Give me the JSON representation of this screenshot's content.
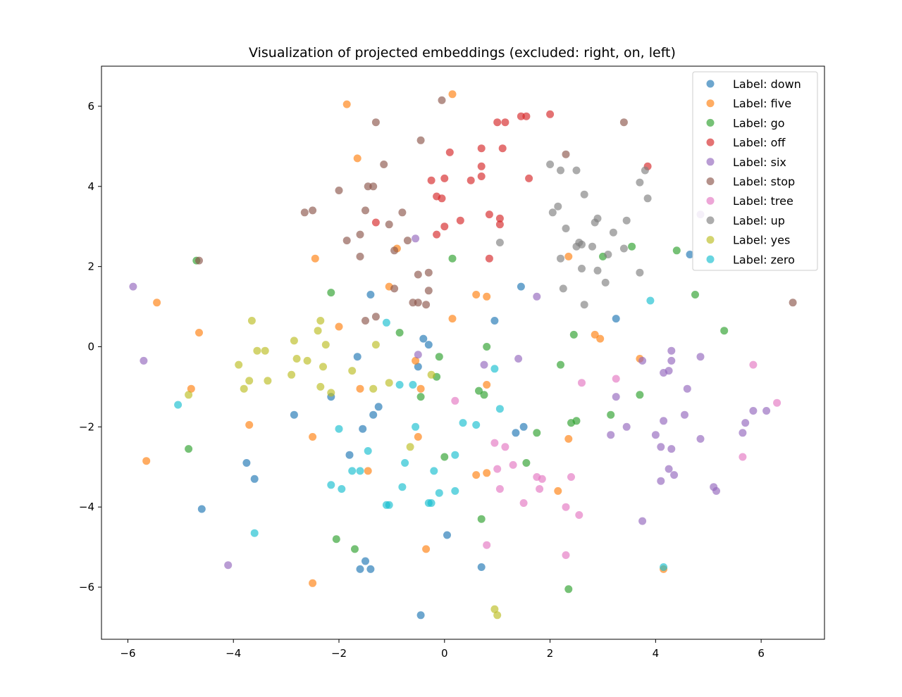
{
  "chart_data": {
    "type": "scatter",
    "title": "Visualization of projected embeddings (excluded: right, on, left)",
    "xlabel": "",
    "ylabel": "",
    "xlim": [
      -6.5,
      7.2
    ],
    "ylim": [
      -7.3,
      7.0
    ],
    "xticks": [
      -6,
      -4,
      -2,
      0,
      2,
      4,
      6
    ],
    "yticks": [
      -6,
      -4,
      -2,
      0,
      2,
      4,
      6
    ],
    "xtick_labels": [
      "−6",
      "−4",
      "−2",
      "0",
      "2",
      "4",
      "6"
    ],
    "ytick_labels": [
      "−6",
      "−4",
      "−2",
      "0",
      "2",
      "4",
      "6"
    ],
    "grid": false,
    "legend_position": "top-right",
    "series": [
      {
        "name": "Label: down",
        "color": "#1f77b4",
        "points": [
          [
            -1.4,
            1.3
          ],
          [
            1.45,
            1.5
          ],
          [
            0.95,
            0.65
          ],
          [
            3.25,
            0.7
          ],
          [
            -0.4,
            0.2
          ],
          [
            -0.3,
            0.05
          ],
          [
            -1.65,
            -0.25
          ],
          [
            -0.5,
            -0.5
          ],
          [
            -2.15,
            -1.25
          ],
          [
            -1.25,
            -1.5
          ],
          [
            -1.35,
            -1.7
          ],
          [
            -2.85,
            -1.7
          ],
          [
            -1.55,
            -2.05
          ],
          [
            -1.8,
            -2.7
          ],
          [
            1.5,
            -2.0
          ],
          [
            1.35,
            -2.15
          ],
          [
            -3.75,
            -2.9
          ],
          [
            -3.6,
            -3.3
          ],
          [
            -4.6,
            -4.05
          ],
          [
            0.05,
            -4.7
          ],
          [
            -1.5,
            -5.35
          ],
          [
            -1.6,
            -5.55
          ],
          [
            -1.4,
            -5.55
          ],
          [
            0.7,
            -5.5
          ],
          [
            -0.45,
            -6.7
          ],
          [
            4.65,
            2.3
          ]
        ]
      },
      {
        "name": "Label: five",
        "color": "#ff7f0e",
        "points": [
          [
            0.15,
            6.3
          ],
          [
            -1.85,
            6.05
          ],
          [
            -1.65,
            4.7
          ],
          [
            -2.45,
            2.2
          ],
          [
            -0.9,
            2.45
          ],
          [
            2.35,
            2.25
          ],
          [
            -5.45,
            1.1
          ],
          [
            -1.05,
            1.5
          ],
          [
            0.6,
            1.3
          ],
          [
            0.8,
            1.25
          ],
          [
            -4.65,
            0.35
          ],
          [
            0.15,
            0.7
          ],
          [
            -2.0,
            0.5
          ],
          [
            2.85,
            0.3
          ],
          [
            2.95,
            0.2
          ],
          [
            3.7,
            -0.3
          ],
          [
            -0.55,
            -0.35
          ],
          [
            -0.45,
            -1.05
          ],
          [
            -4.8,
            -1.05
          ],
          [
            -1.6,
            -1.05
          ],
          [
            0.8,
            -0.95
          ],
          [
            -3.7,
            -1.95
          ],
          [
            -0.5,
            -2.25
          ],
          [
            -2.5,
            -2.25
          ],
          [
            2.35,
            -2.3
          ],
          [
            -5.65,
            -2.85
          ],
          [
            -1.45,
            -3.1
          ],
          [
            0.6,
            -3.2
          ],
          [
            0.8,
            -3.15
          ],
          [
            2.15,
            -3.6
          ],
          [
            -0.35,
            -5.05
          ],
          [
            -2.5,
            -5.9
          ],
          [
            4.15,
            -5.55
          ]
        ]
      },
      {
        "name": "Label: go",
        "color": "#2ca02c",
        "points": [
          [
            0.15,
            2.2
          ],
          [
            3.55,
            2.5
          ],
          [
            4.4,
            2.4
          ],
          [
            3.0,
            2.25
          ],
          [
            -4.7,
            2.15
          ],
          [
            -2.15,
            1.35
          ],
          [
            4.75,
            1.3
          ],
          [
            -0.85,
            0.35
          ],
          [
            2.45,
            0.3
          ],
          [
            5.3,
            0.4
          ],
          [
            0.8,
            0.0
          ],
          [
            -0.1,
            -0.25
          ],
          [
            -0.15,
            -0.75
          ],
          [
            2.2,
            -0.45
          ],
          [
            0.65,
            -1.1
          ],
          [
            0.75,
            -1.2
          ],
          [
            3.7,
            -1.2
          ],
          [
            -0.45,
            -1.25
          ],
          [
            3.15,
            -1.7
          ],
          [
            2.5,
            -1.85
          ],
          [
            2.4,
            -1.9
          ],
          [
            1.75,
            -2.15
          ],
          [
            0.0,
            -2.75
          ],
          [
            1.55,
            -2.9
          ],
          [
            -4.85,
            -2.55
          ],
          [
            0.7,
            -4.3
          ],
          [
            -2.05,
            -4.8
          ],
          [
            -1.7,
            -5.05
          ],
          [
            2.35,
            -6.05
          ]
        ]
      },
      {
        "name": "Label: off",
        "color": "#d62728",
        "points": [
          [
            1.45,
            5.75
          ],
          [
            1.55,
            5.75
          ],
          [
            2.0,
            5.8
          ],
          [
            1.0,
            5.6
          ],
          [
            1.15,
            5.6
          ],
          [
            0.1,
            4.85
          ],
          [
            0.7,
            4.95
          ],
          [
            1.1,
            4.95
          ],
          [
            -0.25,
            4.15
          ],
          [
            0.0,
            4.2
          ],
          [
            0.5,
            4.15
          ],
          [
            0.7,
            4.25
          ],
          [
            0.7,
            4.5
          ],
          [
            1.6,
            4.2
          ],
          [
            3.85,
            4.5
          ],
          [
            -0.15,
            3.75
          ],
          [
            -0.05,
            3.7
          ],
          [
            0.85,
            3.3
          ],
          [
            1.05,
            3.2
          ],
          [
            1.05,
            3.05
          ],
          [
            -1.3,
            3.1
          ],
          [
            0.3,
            3.15
          ],
          [
            0.0,
            3.0
          ],
          [
            -0.15,
            2.8
          ],
          [
            0.85,
            2.2
          ]
        ]
      },
      {
        "name": "Label: six",
        "color": "#9467bd",
        "points": [
          [
            -5.9,
            1.5
          ],
          [
            1.75,
            1.25
          ],
          [
            -0.55,
            2.7
          ],
          [
            4.3,
            -0.1
          ],
          [
            4.85,
            -0.25
          ],
          [
            1.4,
            -0.3
          ],
          [
            3.75,
            -0.35
          ],
          [
            4.3,
            -0.35
          ],
          [
            -5.7,
            -0.35
          ],
          [
            0.75,
            -0.45
          ],
          [
            4.25,
            -0.6
          ],
          [
            -0.5,
            -0.2
          ],
          [
            4.15,
            -0.65
          ],
          [
            4.6,
            -1.05
          ],
          [
            3.25,
            -1.25
          ],
          [
            5.85,
            -1.6
          ],
          [
            6.1,
            -1.6
          ],
          [
            4.15,
            -1.85
          ],
          [
            5.7,
            -1.9
          ],
          [
            4.55,
            -1.7
          ],
          [
            3.45,
            -2.0
          ],
          [
            3.15,
            -2.2
          ],
          [
            4.0,
            -2.2
          ],
          [
            4.85,
            -2.3
          ],
          [
            5.65,
            -2.15
          ],
          [
            4.1,
            -2.5
          ],
          [
            4.3,
            -2.55
          ],
          [
            4.25,
            -3.05
          ],
          [
            4.35,
            -3.2
          ],
          [
            4.1,
            -3.35
          ],
          [
            5.1,
            -3.5
          ],
          [
            5.15,
            -3.6
          ],
          [
            3.75,
            -4.35
          ],
          [
            -4.1,
            -5.45
          ],
          [
            4.85,
            3.3
          ]
        ]
      },
      {
        "name": "Label: stop",
        "color": "#8c564b",
        "points": [
          [
            -0.05,
            6.15
          ],
          [
            -1.3,
            5.6
          ],
          [
            3.4,
            5.6
          ],
          [
            -0.45,
            5.15
          ],
          [
            2.3,
            4.8
          ],
          [
            -1.15,
            4.55
          ],
          [
            -2.0,
            3.9
          ],
          [
            -1.45,
            4.0
          ],
          [
            -1.35,
            4.0
          ],
          [
            -2.65,
            3.35
          ],
          [
            -2.5,
            3.4
          ],
          [
            -1.5,
            3.4
          ],
          [
            -0.8,
            3.35
          ],
          [
            -1.05,
            3.05
          ],
          [
            -1.6,
            2.8
          ],
          [
            -1.85,
            2.65
          ],
          [
            -0.7,
            2.65
          ],
          [
            -0.95,
            2.4
          ],
          [
            -1.6,
            2.25
          ],
          [
            -0.5,
            1.8
          ],
          [
            -0.3,
            1.85
          ],
          [
            -0.3,
            1.4
          ],
          [
            -0.95,
            1.45
          ],
          [
            -0.6,
            1.1
          ],
          [
            -0.5,
            1.1
          ],
          [
            -0.35,
            1.05
          ],
          [
            -1.3,
            0.75
          ],
          [
            -1.5,
            0.65
          ],
          [
            -4.65,
            2.15
          ],
          [
            6.6,
            1.1
          ]
        ]
      },
      {
        "name": "Label: tree",
        "color": "#e377c2",
        "points": [
          [
            5.85,
            -0.45
          ],
          [
            3.25,
            -0.8
          ],
          [
            2.6,
            -0.9
          ],
          [
            6.3,
            -1.4
          ],
          [
            0.2,
            -1.35
          ],
          [
            0.95,
            -2.4
          ],
          [
            1.15,
            -2.5
          ],
          [
            1.3,
            -2.95
          ],
          [
            1.0,
            -3.05
          ],
          [
            1.75,
            -3.25
          ],
          [
            1.85,
            -3.3
          ],
          [
            2.4,
            -3.25
          ],
          [
            5.65,
            -2.75
          ],
          [
            1.05,
            -3.55
          ],
          [
            1.8,
            -3.55
          ],
          [
            1.5,
            -3.9
          ],
          [
            2.3,
            -4.0
          ],
          [
            2.55,
            -4.2
          ],
          [
            0.8,
            -4.95
          ],
          [
            2.3,
            -5.2
          ]
        ]
      },
      {
        "name": "Label: up",
        "color": "#7f7f7f",
        "points": [
          [
            2.0,
            4.55
          ],
          [
            2.2,
            4.4
          ],
          [
            2.5,
            4.4
          ],
          [
            3.8,
            4.4
          ],
          [
            3.7,
            4.1
          ],
          [
            2.65,
            3.8
          ],
          [
            3.85,
            3.7
          ],
          [
            2.15,
            3.5
          ],
          [
            2.05,
            3.35
          ],
          [
            2.9,
            3.2
          ],
          [
            3.45,
            3.15
          ],
          [
            2.85,
            3.1
          ],
          [
            2.3,
            2.95
          ],
          [
            3.2,
            2.85
          ],
          [
            1.05,
            2.6
          ],
          [
            2.55,
            2.6
          ],
          [
            2.6,
            2.55
          ],
          [
            2.5,
            2.5
          ],
          [
            2.8,
            2.5
          ],
          [
            3.4,
            2.45
          ],
          [
            3.1,
            2.3
          ],
          [
            2.2,
            2.2
          ],
          [
            2.6,
            1.95
          ],
          [
            2.9,
            1.9
          ],
          [
            3.7,
            1.85
          ],
          [
            3.05,
            1.6
          ],
          [
            2.25,
            1.45
          ],
          [
            2.65,
            1.05
          ]
        ]
      },
      {
        "name": "Label: yes",
        "color": "#bcbd22",
        "points": [
          [
            -3.65,
            0.65
          ],
          [
            -2.35,
            0.65
          ],
          [
            -2.4,
            0.4
          ],
          [
            -2.85,
            0.15
          ],
          [
            -2.25,
            0.05
          ],
          [
            -1.3,
            0.05
          ],
          [
            -3.55,
            -0.1
          ],
          [
            -3.4,
            -0.1
          ],
          [
            -2.8,
            -0.3
          ],
          [
            -2.6,
            -0.35
          ],
          [
            -3.9,
            -0.45
          ],
          [
            -2.3,
            -0.5
          ],
          [
            -1.75,
            -0.6
          ],
          [
            -2.9,
            -0.7
          ],
          [
            -0.25,
            -0.7
          ],
          [
            -3.7,
            -0.85
          ],
          [
            -3.35,
            -0.85
          ],
          [
            -1.05,
            -0.9
          ],
          [
            -2.35,
            -1.0
          ],
          [
            -3.8,
            -1.05
          ],
          [
            -1.35,
            -1.05
          ],
          [
            -2.15,
            -1.15
          ],
          [
            -4.85,
            -1.2
          ],
          [
            -0.65,
            -2.5
          ],
          [
            0.95,
            -6.55
          ],
          [
            1.0,
            -6.7
          ]
        ]
      },
      {
        "name": "Label: zero",
        "color": "#17becf",
        "points": [
          [
            3.9,
            1.15
          ],
          [
            -1.1,
            0.6
          ],
          [
            0.95,
            -0.55
          ],
          [
            -0.85,
            -0.95
          ],
          [
            -0.6,
            -0.95
          ],
          [
            -5.05,
            -1.45
          ],
          [
            1.05,
            -1.55
          ],
          [
            -2.0,
            -2.05
          ],
          [
            0.35,
            -1.9
          ],
          [
            0.6,
            -1.95
          ],
          [
            -0.55,
            -2.0
          ],
          [
            -1.45,
            -2.6
          ],
          [
            0.2,
            -2.7
          ],
          [
            -0.75,
            -2.9
          ],
          [
            -1.75,
            -3.1
          ],
          [
            -1.6,
            -3.1
          ],
          [
            -0.2,
            -3.1
          ],
          [
            -2.15,
            -3.45
          ],
          [
            -1.95,
            -3.55
          ],
          [
            -0.8,
            -3.5
          ],
          [
            -0.1,
            -3.65
          ],
          [
            0.2,
            -3.6
          ],
          [
            -0.25,
            -3.9
          ],
          [
            -0.3,
            -3.9
          ],
          [
            -1.1,
            -3.95
          ],
          [
            -1.05,
            -3.95
          ],
          [
            -3.6,
            -4.65
          ],
          [
            4.15,
            -5.5
          ]
        ]
      }
    ]
  }
}
